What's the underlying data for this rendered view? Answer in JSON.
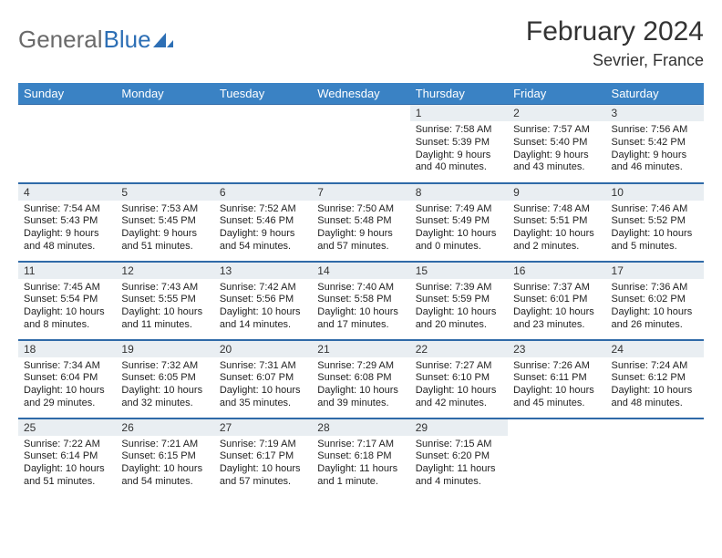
{
  "brand": {
    "part1": "General",
    "part2": "Blue"
  },
  "month_title": "February 2024",
  "location": "Sevrier, France",
  "colors": {
    "header_bg": "#3a82c4",
    "border": "#2f6aa8",
    "daynum_bg": "#e9eef2",
    "brand_blue": "#2d6fb5",
    "brand_gray": "#6a6a6a"
  },
  "day_headers": [
    "Sunday",
    "Monday",
    "Tuesday",
    "Wednesday",
    "Thursday",
    "Friday",
    "Saturday"
  ],
  "weeks": [
    [
      null,
      null,
      null,
      null,
      {
        "n": "1",
        "sr": "7:58 AM",
        "ss": "5:39 PM",
        "dl": "9 hours and 40 minutes."
      },
      {
        "n": "2",
        "sr": "7:57 AM",
        "ss": "5:40 PM",
        "dl": "9 hours and 43 minutes."
      },
      {
        "n": "3",
        "sr": "7:56 AM",
        "ss": "5:42 PM",
        "dl": "9 hours and 46 minutes."
      }
    ],
    [
      {
        "n": "4",
        "sr": "7:54 AM",
        "ss": "5:43 PM",
        "dl": "9 hours and 48 minutes."
      },
      {
        "n": "5",
        "sr": "7:53 AM",
        "ss": "5:45 PM",
        "dl": "9 hours and 51 minutes."
      },
      {
        "n": "6",
        "sr": "7:52 AM",
        "ss": "5:46 PM",
        "dl": "9 hours and 54 minutes."
      },
      {
        "n": "7",
        "sr": "7:50 AM",
        "ss": "5:48 PM",
        "dl": "9 hours and 57 minutes."
      },
      {
        "n": "8",
        "sr": "7:49 AM",
        "ss": "5:49 PM",
        "dl": "10 hours and 0 minutes."
      },
      {
        "n": "9",
        "sr": "7:48 AM",
        "ss": "5:51 PM",
        "dl": "10 hours and 2 minutes."
      },
      {
        "n": "10",
        "sr": "7:46 AM",
        "ss": "5:52 PM",
        "dl": "10 hours and 5 minutes."
      }
    ],
    [
      {
        "n": "11",
        "sr": "7:45 AM",
        "ss": "5:54 PM",
        "dl": "10 hours and 8 minutes."
      },
      {
        "n": "12",
        "sr": "7:43 AM",
        "ss": "5:55 PM",
        "dl": "10 hours and 11 minutes."
      },
      {
        "n": "13",
        "sr": "7:42 AM",
        "ss": "5:56 PM",
        "dl": "10 hours and 14 minutes."
      },
      {
        "n": "14",
        "sr": "7:40 AM",
        "ss": "5:58 PM",
        "dl": "10 hours and 17 minutes."
      },
      {
        "n": "15",
        "sr": "7:39 AM",
        "ss": "5:59 PM",
        "dl": "10 hours and 20 minutes."
      },
      {
        "n": "16",
        "sr": "7:37 AM",
        "ss": "6:01 PM",
        "dl": "10 hours and 23 minutes."
      },
      {
        "n": "17",
        "sr": "7:36 AM",
        "ss": "6:02 PM",
        "dl": "10 hours and 26 minutes."
      }
    ],
    [
      {
        "n": "18",
        "sr": "7:34 AM",
        "ss": "6:04 PM",
        "dl": "10 hours and 29 minutes."
      },
      {
        "n": "19",
        "sr": "7:32 AM",
        "ss": "6:05 PM",
        "dl": "10 hours and 32 minutes."
      },
      {
        "n": "20",
        "sr": "7:31 AM",
        "ss": "6:07 PM",
        "dl": "10 hours and 35 minutes."
      },
      {
        "n": "21",
        "sr": "7:29 AM",
        "ss": "6:08 PM",
        "dl": "10 hours and 39 minutes."
      },
      {
        "n": "22",
        "sr": "7:27 AM",
        "ss": "6:10 PM",
        "dl": "10 hours and 42 minutes."
      },
      {
        "n": "23",
        "sr": "7:26 AM",
        "ss": "6:11 PM",
        "dl": "10 hours and 45 minutes."
      },
      {
        "n": "24",
        "sr": "7:24 AM",
        "ss": "6:12 PM",
        "dl": "10 hours and 48 minutes."
      }
    ],
    [
      {
        "n": "25",
        "sr": "7:22 AM",
        "ss": "6:14 PM",
        "dl": "10 hours and 51 minutes."
      },
      {
        "n": "26",
        "sr": "7:21 AM",
        "ss": "6:15 PM",
        "dl": "10 hours and 54 minutes."
      },
      {
        "n": "27",
        "sr": "7:19 AM",
        "ss": "6:17 PM",
        "dl": "10 hours and 57 minutes."
      },
      {
        "n": "28",
        "sr": "7:17 AM",
        "ss": "6:18 PM",
        "dl": "11 hours and 1 minute."
      },
      {
        "n": "29",
        "sr": "7:15 AM",
        "ss": "6:20 PM",
        "dl": "11 hours and 4 minutes."
      },
      null,
      null
    ]
  ]
}
